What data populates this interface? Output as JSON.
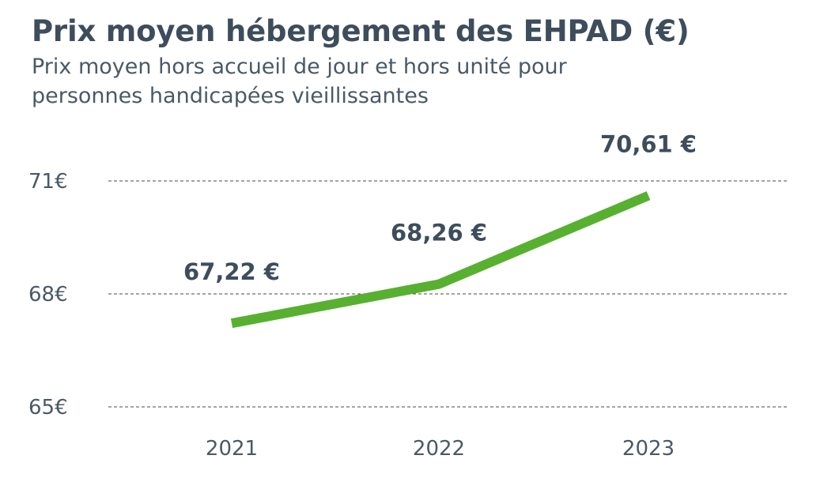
{
  "header": {
    "title": "Prix moyen hébergement des EHPAD (€)",
    "subtitle": "Prix moyen hors accueil de jour et hors unité pour personnes handicapées vieillissantes"
  },
  "chart_data": {
    "type": "line",
    "title": "Prix moyen hébergement des EHPAD (€)",
    "subtitle": "Prix moyen hors accueil de jour et hors unité pour personnes handicapées vieillissantes",
    "categories": [
      "2021",
      "2022",
      "2023"
    ],
    "series": [
      {
        "values": [
          67.22,
          68.26,
          70.61
        ],
        "labels": [
          "67,22 €",
          "68,26 €",
          "70,61 €"
        ],
        "color": "#58b030"
      }
    ],
    "y_ticks": [
      {
        "value": 65,
        "label": "65€"
      },
      {
        "value": 68,
        "label": "68€"
      },
      {
        "value": 71,
        "label": "71€"
      }
    ],
    "ylim": [
      65,
      71
    ],
    "grid": "dashed horizontal",
    "legend": "none",
    "colors": {
      "line": "#58b030",
      "text": "#3d4d5c",
      "grid": "#4a4a4a"
    }
  }
}
